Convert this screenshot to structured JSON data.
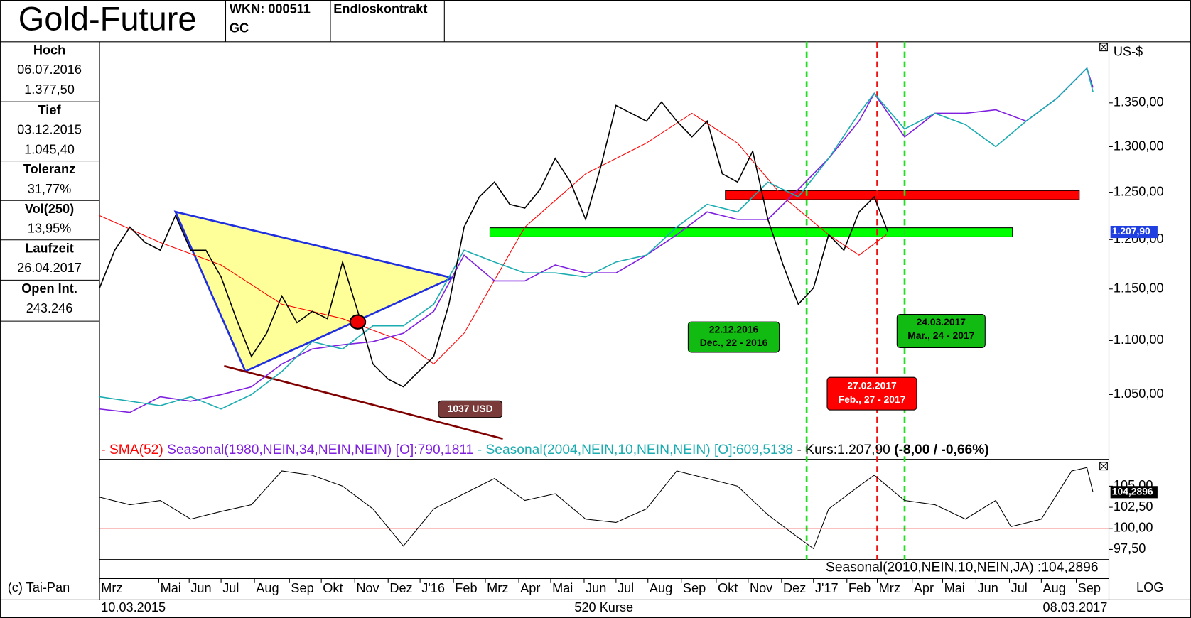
{
  "header": {
    "title": "Gold-Future",
    "wkn": "WKN: 000511",
    "symbol": "GC",
    "contract": "Endloskontrakt"
  },
  "stats": [
    {
      "label": "Hoch",
      "lines": [
        "06.07.2016",
        "1.377,50"
      ]
    },
    {
      "label": "Tief",
      "lines": [
        "03.12.2015",
        "1.045,40"
      ]
    },
    {
      "label": "Toleranz",
      "lines": [
        "31,77%"
      ]
    },
    {
      "label": "Vol(250)",
      "lines": [
        "13,95%"
      ]
    },
    {
      "label": "Laufzeit",
      "lines": [
        "26.04.2017"
      ]
    },
    {
      "label": "Open Int.",
      "lines": [
        "243.246"
      ]
    }
  ],
  "annotations": {
    "box_dec": [
      "22.12.2016",
      "Dec., 22 - 2016"
    ],
    "box_mar": [
      "24.03.2017",
      "Mar., 24 - 2017"
    ],
    "box_feb": [
      "27.02.2017",
      "Feb., 27 - 2017"
    ],
    "box_usd": "1037 USD"
  },
  "footer": {
    "copyright": "(c) Tai-Pan",
    "scale": "LOG",
    "start": "10.03.2015",
    "count": "520 Kurse",
    "end": "08.03.2017"
  },
  "chart_data": [
    {
      "type": "line",
      "axis_unit": "US-$",
      "log_scale": true,
      "xlim": [
        0,
        664.5
      ],
      "ylim": [
        993,
        1423
      ],
      "yticks": [
        {
          "value": 1050,
          "label": "1.050,00"
        },
        {
          "value": 1100,
          "label": "1.100,00"
        },
        {
          "value": 1150,
          "label": "1.150,00"
        },
        {
          "value": 1200,
          "label": "1.200,00"
        },
        {
          "value": 1250,
          "label": "1.250,00"
        },
        {
          "value": 1300,
          "label": "1.300,00"
        },
        {
          "value": 1350,
          "label": "1.350,00"
        }
      ],
      "xticks": [
        {
          "value": 0,
          "label": "Mrz"
        },
        {
          "value": 39,
          "label": "Mai"
        },
        {
          "value": 59,
          "label": "Jun"
        },
        {
          "value": 80,
          "label": "Jul"
        },
        {
          "value": 102,
          "label": "Aug"
        },
        {
          "value": 125,
          "label": "Sep"
        },
        {
          "value": 146,
          "label": "Okt"
        },
        {
          "value": 168,
          "label": "Nov"
        },
        {
          "value": 190,
          "label": "Dez"
        },
        {
          "value": 211,
          "label": "J'16"
        },
        {
          "value": 233,
          "label": "Feb"
        },
        {
          "value": 254,
          "label": "Mrz"
        },
        {
          "value": 276,
          "label": "Apr"
        },
        {
          "value": 297,
          "label": "Mai"
        },
        {
          "value": 319,
          "label": "Jun"
        },
        {
          "value": 340,
          "label": "Jul"
        },
        {
          "value": 361,
          "label": "Aug"
        },
        {
          "value": 383,
          "label": "Sep"
        },
        {
          "value": 406,
          "label": "Okt"
        },
        {
          "value": 427,
          "label": "Nov"
        },
        {
          "value": 449,
          "label": "Dez"
        },
        {
          "value": 470,
          "label": "J'17"
        },
        {
          "value": 492,
          "label": "Feb"
        },
        {
          "value": 512,
          "label": "Mrz"
        },
        {
          "value": 535,
          "label": "Apr"
        },
        {
          "value": 555,
          "label": "Mai"
        },
        {
          "value": 577,
          "label": "Jun"
        },
        {
          "value": 599,
          "label": "Jul"
        },
        {
          "value": 620,
          "label": "Aug"
        },
        {
          "value": 643,
          "label": "Sep"
        }
      ],
      "price_change": "(-8,00 / -0,66%)",
      "series": [
        {
          "name": "- SMA(52)",
          "color": "#ff0000",
          "width": 1,
          "x": [
            0,
            40,
            80,
            120,
            160,
            200,
            220,
            240,
            280,
            320,
            360,
            390,
            420,
            450,
            480,
            500,
            518
          ],
          "values": [
            1225,
            1197,
            1174,
            1135,
            1121,
            1099,
            1078,
            1107,
            1213,
            1270,
            1304,
            1338,
            1304,
            1245,
            1205,
            1184,
            1205
          ]
        },
        {
          "name": "Seasonal(1980,NEIN,34,NEIN,NEIN) [O]:790,1811",
          "color": "#7f1fe0",
          "width": 1.5,
          "x": [
            0,
            20,
            40,
            60,
            80,
            100,
            120,
            140,
            160,
            180,
            200,
            220,
            240,
            260,
            280,
            300,
            320,
            340,
            360,
            380,
            400,
            420,
            440,
            460,
            480,
            500,
            510,
            530,
            550,
            570,
            590,
            610,
            630,
            650,
            654
          ],
          "values": [
            1037,
            1034,
            1048,
            1044,
            1050,
            1057,
            1078,
            1092,
            1096,
            1099,
            1107,
            1128,
            1184,
            1158,
            1158,
            1174,
            1166,
            1166,
            1184,
            1205,
            1229,
            1221,
            1221,
            1253,
            1287,
            1329,
            1361,
            1311,
            1338,
            1338,
            1342,
            1329,
            1355,
            1391,
            1368
          ]
        },
        {
          "name": "- Seasonal(2004,NEIN,10,NEIN,NEIN) [O]:609,5138",
          "color": "#1aacb0",
          "width": 1.5,
          "x": [
            0,
            20,
            40,
            60,
            80,
            100,
            120,
            140,
            160,
            180,
            200,
            220,
            240,
            260,
            280,
            300,
            320,
            340,
            360,
            380,
            400,
            420,
            440,
            460,
            480,
            500,
            510,
            530,
            550,
            570,
            590,
            610,
            630,
            650,
            654
          ],
          "values": [
            1048,
            1044,
            1040,
            1048,
            1037,
            1050,
            1071,
            1099,
            1092,
            1114,
            1114,
            1135,
            1189,
            1177,
            1166,
            1166,
            1162,
            1177,
            1184,
            1213,
            1237,
            1229,
            1261,
            1245,
            1287,
            1338,
            1361,
            1320,
            1338,
            1325,
            1300,
            1329,
            1355,
            1391,
            1363
          ]
        },
        {
          "name": "- Kurs:1.207,90",
          "color": "#000000",
          "width": 1.5,
          "current_value_label": "1.207,90",
          "x": [
            0,
            10,
            20,
            30,
            40,
            50,
            60,
            70,
            80,
            90,
            100,
            110,
            120,
            130,
            140,
            150,
            160,
            170,
            180,
            190,
            200,
            210,
            220,
            230,
            240,
            250,
            260,
            270,
            280,
            290,
            300,
            310,
            320,
            330,
            340,
            350,
            360,
            370,
            380,
            390,
            400,
            410,
            420,
            430,
            440,
            450,
            460,
            470,
            480,
            490,
            500,
            510,
            519
          ],
          "values": [
            1151,
            1189,
            1213,
            1197,
            1189,
            1225,
            1189,
            1189,
            1162,
            1121,
            1085,
            1107,
            1143,
            1117,
            1128,
            1121,
            1177,
            1128,
            1078,
            1064,
            1057,
            1071,
            1085,
            1135,
            1213,
            1245,
            1261,
            1237,
            1233,
            1253,
            1287,
            1261,
            1221,
            1278,
            1347,
            1338,
            1329,
            1351,
            1329,
            1311,
            1329,
            1270,
            1261,
            1295,
            1221,
            1174,
            1135,
            1151,
            1205,
            1189,
            1229,
            1245,
            1207.9
          ]
        }
      ]
    },
    {
      "type": "line",
      "xlim": [
        0,
        664.5
      ],
      "ylim": [
        96.3,
        108
      ],
      "baseline": 100,
      "yticks": [
        {
          "value": 97.5,
          "label": "97,50"
        },
        {
          "value": 100,
          "label": "100,00"
        },
        {
          "value": 102.5,
          "label": "102,50"
        },
        {
          "value": 105,
          "label": "105,00"
        }
      ],
      "series": [
        {
          "name": "Seasonal(2010,NEIN,10,NEIN,JA) :104,2896",
          "color": "#000000",
          "width": 1,
          "current_value_label": "104,2896",
          "x": [
            0,
            20,
            40,
            60,
            80,
            100,
            120,
            140,
            160,
            180,
            200,
            220,
            240,
            260,
            280,
            300,
            320,
            340,
            360,
            380,
            400,
            420,
            440,
            460,
            470,
            480,
            500,
            510,
            530,
            550,
            570,
            590,
            600,
            620,
            640,
            650,
            654
          ],
          "values": [
            103.7,
            102.8,
            103.3,
            101.1,
            102,
            102.8,
            106.8,
            106.3,
            105,
            102.3,
            97.9,
            102.3,
            104.1,
            105.9,
            103.3,
            104.1,
            101.1,
            100.7,
            102.3,
            106.8,
            105.9,
            105,
            101.6,
            98.9,
            97.6,
            102.3,
            105,
            106.3,
            103.3,
            102.8,
            101.1,
            103.3,
            100.2,
            101.1,
            106.8,
            107.2,
            104.2896
          ]
        }
      ]
    }
  ]
}
